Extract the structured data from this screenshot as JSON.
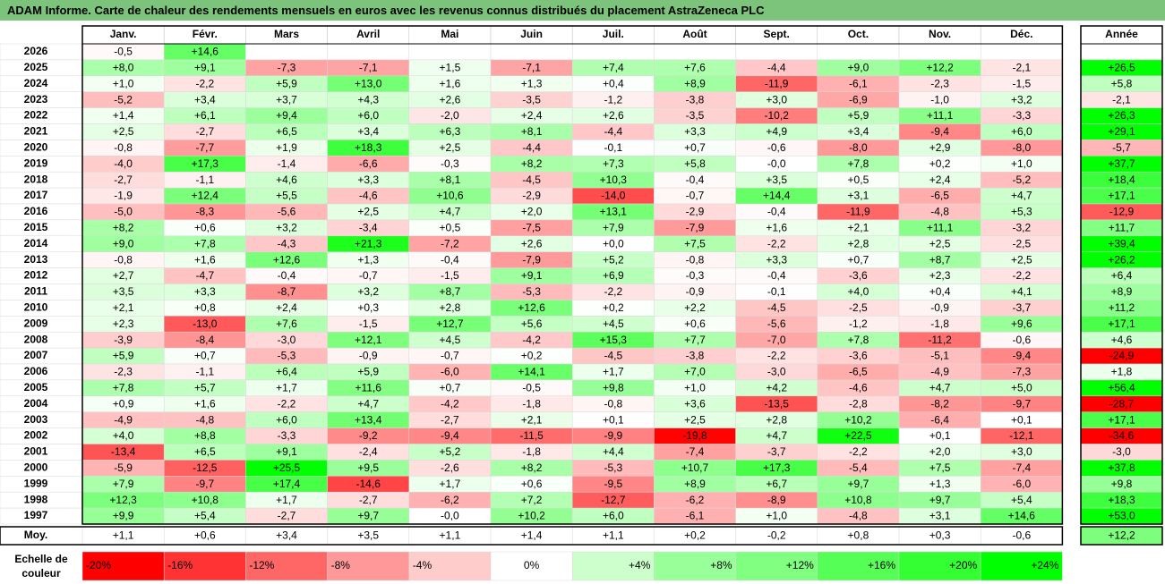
{
  "title": "ADAM Informe. Carte de chaleur des rendements mensuels en euros avec les revenus connus distribués du placement AstraZeneca PLC",
  "chart_data": {
    "type": "heatmap",
    "months": [
      "Janv.",
      "Févr.",
      "Mars",
      "Avril",
      "Mai",
      "Juin",
      "Juil.",
      "Août",
      "Sept.",
      "Oct.",
      "Nov.",
      "Déc."
    ],
    "year_header": "Année",
    "rows": [
      {
        "year": "2026",
        "values": [
          -0.5,
          14.6,
          null,
          null,
          null,
          null,
          null,
          null,
          null,
          null,
          null,
          null
        ],
        "annual": null
      },
      {
        "year": "2025",
        "values": [
          8.0,
          9.1,
          -7.3,
          -7.1,
          1.5,
          -7.1,
          7.4,
          7.6,
          -4.4,
          9.0,
          12.2,
          -2.1
        ],
        "annual": 26.5
      },
      {
        "year": "2024",
        "values": [
          1.0,
          -2.2,
          5.9,
          13.0,
          1.6,
          1.3,
          0.4,
          8.9,
          -11.9,
          -6.1,
          -2.3,
          -1.5
        ],
        "annual": 5.8
      },
      {
        "year": "2023",
        "values": [
          -5.2,
          3.4,
          3.7,
          4.3,
          2.6,
          -3.5,
          -1.2,
          -3.8,
          3.0,
          -6.9,
          -1.0,
          3.2
        ],
        "annual": -2.1
      },
      {
        "year": "2022",
        "values": [
          1.4,
          6.1,
          9.4,
          6.0,
          -2.0,
          2.4,
          2.6,
          -3.5,
          -10.2,
          5.9,
          11.1,
          -3.3
        ],
        "annual": 26.3
      },
      {
        "year": "2021",
        "values": [
          2.5,
          -2.7,
          6.5,
          3.4,
          6.3,
          8.1,
          -4.4,
          3.3,
          4.9,
          3.4,
          -9.4,
          6.0
        ],
        "annual": 29.1
      },
      {
        "year": "2020",
        "values": [
          -0.8,
          -7.7,
          1.9,
          18.3,
          2.5,
          -4.4,
          -0.1,
          0.7,
          -0.6,
          -8.0,
          2.9,
          -8.0
        ],
        "annual": -5.7
      },
      {
        "year": "2019",
        "values": [
          -4.0,
          17.3,
          -1.4,
          -6.6,
          -0.3,
          8.2,
          7.3,
          5.8,
          -0.0,
          7.8,
          0.2,
          1.0
        ],
        "annual": 37.7
      },
      {
        "year": "2018",
        "values": [
          -2.7,
          -1.1,
          4.6,
          3.3,
          8.1,
          -4.5,
          10.3,
          -0.4,
          3.5,
          0.5,
          2.4,
          -5.2
        ],
        "annual": 18.4
      },
      {
        "year": "2017",
        "values": [
          -1.9,
          12.4,
          5.5,
          -4.6,
          10.6,
          -2.9,
          -14.0,
          -0.7,
          14.4,
          3.1,
          -6.5,
          4.7
        ],
        "annual": 17.1
      },
      {
        "year": "2016",
        "values": [
          -5.0,
          -8.3,
          -5.6,
          2.5,
          4.7,
          2.0,
          13.1,
          -2.9,
          -0.4,
          -11.9,
          -4.8,
          5.3
        ],
        "annual": -12.9
      },
      {
        "year": "2015",
        "values": [
          8.2,
          0.6,
          3.2,
          -3.4,
          0.5,
          -7.5,
          7.9,
          -7.9,
          1.6,
          2.1,
          11.1,
          -3.2
        ],
        "annual": 11.7
      },
      {
        "year": "2014",
        "values": [
          9.0,
          7.8,
          -4.3,
          21.3,
          -7.2,
          2.6,
          0.0,
          7.5,
          -2.2,
          2.8,
          2.5,
          -2.5
        ],
        "annual": 39.4
      },
      {
        "year": "2013",
        "values": [
          -0.8,
          1.6,
          12.6,
          1.3,
          -0.4,
          -7.9,
          5.2,
          -0.8,
          3.3,
          0.7,
          8.7,
          2.5
        ],
        "annual": 26.2
      },
      {
        "year": "2012",
        "values": [
          2.7,
          -4.7,
          -0.4,
          -0.7,
          -1.5,
          9.1,
          6.9,
          -0.3,
          -0.4,
          -3.6,
          2.3,
          -2.2
        ],
        "annual": 6.4
      },
      {
        "year": "2011",
        "values": [
          3.5,
          3.3,
          -8.7,
          3.2,
          8.7,
          -5.3,
          -2.2,
          -0.9,
          -0.1,
          4.0,
          0.4,
          4.1
        ],
        "annual": 8.9
      },
      {
        "year": "2010",
        "values": [
          2.1,
          0.8,
          2.4,
          0.3,
          2.8,
          12.6,
          0.2,
          2.2,
          -4.5,
          -2.5,
          -0.9,
          -3.7
        ],
        "annual": 11.2
      },
      {
        "year": "2009",
        "values": [
          2.3,
          -13.0,
          7.6,
          -1.5,
          12.7,
          5.6,
          4.5,
          0.6,
          -5.6,
          -1.2,
          -1.8,
          9.6
        ],
        "annual": 17.1
      },
      {
        "year": "2008",
        "values": [
          -3.9,
          -8.4,
          -3.0,
          12.1,
          4.5,
          -4.2,
          15.3,
          7.7,
          -7.0,
          7.8,
          -11.2,
          -0.6
        ],
        "annual": 4.6
      },
      {
        "year": "2007",
        "values": [
          5.9,
          0.7,
          -5.3,
          -0.9,
          -0.7,
          0.2,
          -4.5,
          -3.8,
          -2.2,
          -3.6,
          -5.1,
          -9.4
        ],
        "annual": -24.9
      },
      {
        "year": "2006",
        "values": [
          -2.3,
          -1.1,
          6.4,
          5.9,
          -6.0,
          14.1,
          1.7,
          7.0,
          -3.0,
          -6.5,
          -4.9,
          -7.3
        ],
        "annual": 1.8
      },
      {
        "year": "2005",
        "values": [
          7.8,
          5.7,
          1.7,
          11.6,
          0.7,
          -0.5,
          9.8,
          1.0,
          4.2,
          -4.6,
          4.7,
          5.0
        ],
        "annual": 56.4
      },
      {
        "year": "2004",
        "values": [
          0.9,
          1.6,
          -2.2,
          4.7,
          -4.2,
          -1.8,
          -0.8,
          3.6,
          -13.5,
          -2.8,
          -8.2,
          -9.7
        ],
        "annual": -28.7
      },
      {
        "year": "2003",
        "values": [
          -4.9,
          -4.8,
          6.0,
          13.4,
          -2.7,
          2.1,
          0.1,
          2.5,
          2.8,
          10.2,
          -6.4,
          0.1
        ],
        "annual": 17.1
      },
      {
        "year": "2002",
        "values": [
          4.0,
          8.8,
          -3.3,
          -9.2,
          -9.4,
          -11.5,
          -9.9,
          -19.8,
          4.7,
          22.5,
          0.1,
          -12.1
        ],
        "annual": -34.6
      },
      {
        "year": "2001",
        "values": [
          -13.4,
          6.5,
          9.1,
          -2.4,
          5.2,
          -1.8,
          4.4,
          -7.4,
          -3.7,
          -2.2,
          2.0,
          3.0
        ],
        "annual": -3.0
      },
      {
        "year": "2000",
        "values": [
          -5.9,
          -12.5,
          25.5,
          9.5,
          -2.6,
          8.2,
          -5.3,
          10.7,
          17.3,
          -5.4,
          7.5,
          -7.4
        ],
        "annual": 37.8
      },
      {
        "year": "1999",
        "values": [
          7.9,
          -9.7,
          17.4,
          -14.6,
          1.7,
          0.6,
          -9.5,
          8.9,
          6.7,
          9.7,
          1.3,
          -6.0
        ],
        "annual": 9.8
      },
      {
        "year": "1998",
        "values": [
          12.3,
          10.8,
          1.7,
          -2.7,
          -6.2,
          7.2,
          -12.7,
          -6.2,
          -8.9,
          10.8,
          9.7,
          5.4
        ],
        "annual": 18.3
      },
      {
        "year": "1997",
        "values": [
          9.9,
          5.4,
          -2.7,
          9.7,
          -0.0,
          10.2,
          6.0,
          -6.1,
          1.0,
          -4.8,
          3.1,
          14.6
        ],
        "annual": 53.0
      }
    ],
    "average": {
      "label": "Moy.",
      "values": [
        1.1,
        0.6,
        3.4,
        3.5,
        1.1,
        1.4,
        1.1,
        0.2,
        -0.2,
        0.8,
        0.3,
        -0.6
      ],
      "annual": 12.2
    },
    "scale": {
      "label_lines": [
        "Echelle de",
        "couleur"
      ],
      "stops": [
        {
          "value": -20,
          "label": "-20%",
          "color": "#ff0000"
        },
        {
          "value": -16,
          "label": "-16%",
          "color": "#ff3333"
        },
        {
          "value": -12,
          "label": "-12%",
          "color": "#ff6666"
        },
        {
          "value": -8,
          "label": "-8%",
          "color": "#ff9999"
        },
        {
          "value": -4,
          "label": "-4%",
          "color": "#ffcccc"
        },
        {
          "value": 0,
          "label": "0%",
          "color": "#ffffff"
        },
        {
          "value": 4,
          "label": "+4%",
          "color": "#ccffcc"
        },
        {
          "value": 8,
          "label": "+8%",
          "color": "#99ff99"
        },
        {
          "value": 12,
          "label": "+12%",
          "color": "#80ff80"
        },
        {
          "value": 16,
          "label": "+16%",
          "color": "#55ff55"
        },
        {
          "value": 20,
          "label": "+20%",
          "color": "#33ff33"
        },
        {
          "value": 24,
          "label": "+24%",
          "color": "#00ff00"
        }
      ]
    },
    "colors": {
      "title_bar": "#7cc47c",
      "negative_max": "#ff0000",
      "positive_max": "#00ff00",
      "neutral": "#ffffff"
    }
  }
}
